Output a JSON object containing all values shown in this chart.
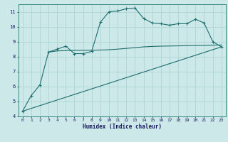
{
  "xlabel": "Humidex (Indice chaleur)",
  "bg_color": "#cce8e8",
  "grid_color": "#aed4d4",
  "line_color": "#1e6e6e",
  "xlim": [
    -0.5,
    23.5
  ],
  "ylim": [
    4,
    11.5
  ],
  "xticks": [
    0,
    1,
    2,
    3,
    4,
    5,
    6,
    7,
    8,
    9,
    10,
    11,
    12,
    13,
    14,
    15,
    16,
    17,
    18,
    19,
    20,
    21,
    22,
    23
  ],
  "yticks": [
    4,
    5,
    6,
    7,
    8,
    9,
    10,
    11
  ],
  "curve1_x": [
    0,
    1,
    2,
    3,
    4,
    5,
    6,
    7,
    8,
    9,
    10,
    11,
    12,
    13,
    14,
    15,
    16,
    17,
    18,
    19,
    20,
    21,
    22,
    23
  ],
  "curve1_y": [
    4.35,
    5.4,
    6.1,
    8.3,
    8.5,
    8.7,
    8.2,
    8.2,
    8.35,
    10.3,
    11.0,
    11.05,
    11.2,
    11.25,
    10.55,
    10.25,
    10.2,
    10.1,
    10.2,
    10.2,
    10.5,
    10.25,
    9.0,
    8.65
  ],
  "curve2_x": [
    0,
    23
  ],
  "curve2_y": [
    4.35,
    8.65
  ],
  "curve3_x": [
    3,
    4,
    5,
    6,
    7,
    8,
    9,
    10,
    11,
    12,
    13,
    14,
    15,
    16,
    17,
    18,
    19,
    20,
    21,
    22,
    23
  ],
  "curve3_y": [
    8.3,
    8.38,
    8.4,
    8.42,
    8.42,
    8.43,
    8.44,
    8.46,
    8.5,
    8.55,
    8.6,
    8.65,
    8.68,
    8.7,
    8.71,
    8.72,
    8.73,
    8.74,
    8.75,
    8.77,
    8.78
  ]
}
